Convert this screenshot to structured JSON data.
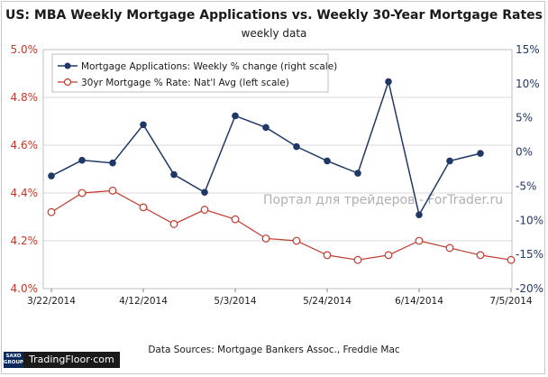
{
  "title": "US: MBA Weekly Mortgage Applications vs. Weekly 30-Year Mortgage Rates",
  "subtitle": "weekly data",
  "source": "Data Sources: Mortgage Bankers Assoc., Freddie Mac",
  "watermark": "Портал для трейдеров - ForTrader.ru",
  "logo": {
    "badge": "SAXO GROUP",
    "text": "TradingFloor·com"
  },
  "colors": {
    "applications": "#1f3868",
    "rate": "#c0392b",
    "grid": "#d9d9d9"
  },
  "chart_data": {
    "type": "line",
    "x_tick_labels": [
      "3/22/2014",
      "4/12/2014",
      "5/3/2014",
      "5/24/2014",
      "6/14/2014",
      "7/5/2014"
    ],
    "x_tick_indices": [
      0,
      3,
      6,
      9,
      12,
      15
    ],
    "left_axis": {
      "ylim": [
        4.0,
        5.0
      ],
      "ticks": [
        "4.0%",
        "4.2%",
        "4.4%",
        "4.6%",
        "4.8%",
        "5.0%"
      ]
    },
    "right_axis": {
      "ylim": [
        -20,
        15
      ],
      "ticks": [
        "-20%",
        "-15%",
        "-10%",
        "-5%",
        "0%",
        "5%",
        "10%",
        "15%"
      ]
    },
    "grid": true,
    "legend_position": "top-left",
    "series": [
      {
        "name": "Mortgage Applications: Weekly % change (right scale)",
        "axis": "right",
        "values": [
          -3.5,
          -1.2,
          -1.6,
          4.0,
          -3.3,
          -5.9,
          5.3,
          3.6,
          0.8,
          -1.3,
          -3.1,
          10.3,
          -9.2,
          -1.3,
          -0.2,
          null
        ]
      },
      {
        "name": "30yr Mortgage % Rate: Nat'l Avg (left scale)",
        "axis": "left",
        "values": [
          4.32,
          4.4,
          4.41,
          4.34,
          4.27,
          4.33,
          4.29,
          4.21,
          4.2,
          4.14,
          4.12,
          4.14,
          4.2,
          4.17,
          4.14,
          4.12
        ]
      }
    ]
  }
}
